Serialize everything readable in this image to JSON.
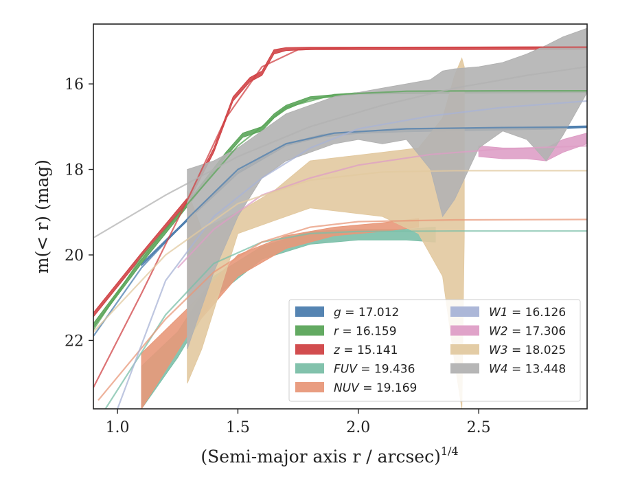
{
  "chart_data": {
    "type": "line",
    "xlabel": "(Semi-major axis r / arcsec)",
    "xlabel_superscript": "1/4",
    "ylabel": "m(< r) (mag)",
    "xlim": [
      0.9,
      2.95
    ],
    "ylim": [
      23.6,
      14.6
    ],
    "y_inverted": true,
    "xticks": [
      1.0,
      1.5,
      2.0,
      2.5
    ],
    "xtick_labels": [
      "1.0",
      "1.5",
      "2.0",
      "2.5"
    ],
    "yticks": [
      16,
      18,
      20,
      22
    ],
    "ytick_labels": [
      "16",
      "18",
      "20",
      "22"
    ],
    "grid": false,
    "legend_position": "lower-right",
    "series": [
      {
        "key": "g",
        "name": "g = 17.012",
        "label_var": "g",
        "label_val": "= 17.012",
        "color": "#4c7dae",
        "band_x": [
          1.1,
          1.3,
          1.5,
          1.7,
          1.85,
          2.0,
          2.2,
          2.4,
          2.6,
          2.8,
          2.95
        ],
        "band_lo": [
          20.2,
          19.1,
          18.05,
          17.4,
          17.18,
          17.1,
          17.06,
          17.04,
          17.02,
          17.0,
          16.98
        ],
        "band_hi": [
          20.25,
          19.15,
          18.1,
          17.45,
          17.24,
          17.16,
          17.12,
          17.1,
          17.08,
          17.06,
          17.02
        ],
        "model_x": [
          0.9,
          1.1,
          1.3,
          1.5,
          1.7,
          1.9,
          2.2,
          2.6,
          2.95
        ],
        "model_y": [
          21.9,
          20.3,
          19.1,
          18.0,
          17.4,
          17.15,
          17.05,
          17.02,
          17.01
        ]
      },
      {
        "key": "r",
        "name": "r = 16.159",
        "label_var": "r",
        "label_val": "= 16.159",
        "color": "#5ba55a",
        "band_x": [
          0.9,
          1.1,
          1.3,
          1.45,
          1.52,
          1.6,
          1.65,
          1.7,
          1.8,
          2.0,
          2.4,
          2.95
        ],
        "band_lo": [
          21.6,
          20.1,
          18.7,
          17.6,
          17.15,
          17.0,
          16.7,
          16.5,
          16.3,
          16.2,
          16.18,
          16.16
        ],
        "band_hi": [
          21.7,
          20.2,
          18.8,
          17.7,
          17.25,
          17.1,
          16.8,
          16.6,
          16.36,
          16.24,
          16.22,
          16.2
        ],
        "model_x": [
          0.9,
          1.1,
          1.3,
          1.5,
          1.7,
          1.9,
          2.2,
          2.6,
          2.95
        ],
        "model_y": [
          21.75,
          20.05,
          18.75,
          17.45,
          16.55,
          16.25,
          16.17,
          16.16,
          16.16
        ]
      },
      {
        "key": "z",
        "name": "z = 15.141",
        "label_var": "z",
        "label_val": "= 15.141",
        "color": "#d04346",
        "band_x": [
          0.9,
          1.1,
          1.3,
          1.4,
          1.48,
          1.55,
          1.6,
          1.65,
          1.7,
          1.8,
          2.0,
          2.4,
          2.95
        ],
        "band_lo": [
          21.35,
          19.95,
          18.6,
          17.5,
          16.3,
          15.85,
          15.7,
          15.2,
          15.15,
          15.14,
          15.14,
          15.14,
          15.13
        ],
        "band_hi": [
          21.45,
          20.05,
          18.7,
          17.6,
          16.4,
          15.95,
          15.8,
          15.3,
          15.22,
          15.2,
          15.2,
          15.2,
          15.19
        ],
        "model_x": [
          0.9,
          1.1,
          1.3,
          1.45,
          1.6,
          1.75,
          2.0,
          2.95
        ],
        "model_y": [
          23.1,
          20.9,
          18.6,
          16.8,
          15.6,
          15.2,
          15.15,
          15.14
        ]
      },
      {
        "key": "FUV",
        "name": "FUV = 19.436",
        "label_var": "FUV",
        "label_val": "= 19.436",
        "color": "#7bbfa8",
        "band_x": [
          1.1,
          1.25,
          1.4,
          1.6,
          1.8,
          2.0,
          2.2,
          2.32
        ],
        "band_lo": [
          22.6,
          21.8,
          20.5,
          19.8,
          19.45,
          19.4,
          19.4,
          19.35
        ],
        "band_hi": [
          23.6,
          22.4,
          21.0,
          20.1,
          19.75,
          19.65,
          19.65,
          19.7
        ],
        "model_x": [
          0.95,
          1.2,
          1.4,
          1.6,
          1.8,
          2.0,
          2.4,
          2.95
        ],
        "model_y": [
          23.6,
          21.4,
          20.2,
          19.7,
          19.5,
          19.45,
          19.44,
          19.44
        ]
      },
      {
        "key": "NUV",
        "name": "NUV = 19.169",
        "label_var": "NUV",
        "label_val": "= 19.169",
        "color": "#e8987a",
        "band_x": [
          1.1,
          1.3,
          1.5,
          1.7,
          1.9,
          2.1,
          2.25
        ],
        "band_lo": [
          22.3,
          21.2,
          20.0,
          19.55,
          19.35,
          19.25,
          19.15
        ],
        "band_hi": [
          23.6,
          21.8,
          20.5,
          19.85,
          19.55,
          19.45,
          19.35
        ],
        "model_x": [
          0.92,
          1.2,
          1.4,
          1.6,
          1.8,
          2.0,
          2.4,
          2.95
        ],
        "model_y": [
          23.4,
          21.5,
          20.4,
          19.7,
          19.35,
          19.22,
          19.18,
          19.17
        ]
      },
      {
        "key": "W1",
        "name": "W1 = 16.126",
        "label_var": "W1",
        "label_val": "= 16.126",
        "color": "#a8b3d6",
        "band_x": [],
        "band_lo": [],
        "band_hi": [],
        "model_x": [
          1.0,
          1.2,
          1.4,
          1.6,
          1.8,
          2.0,
          2.3,
          2.6,
          2.95
        ],
        "model_y": [
          23.6,
          20.6,
          19.1,
          18.2,
          17.5,
          17.05,
          16.75,
          16.55,
          16.4
        ]
      },
      {
        "key": "W2",
        "name": "W2 = 17.306",
        "label_var": "W2",
        "label_val": "= 17.306",
        "color": "#de9ec6",
        "band_x": [
          2.5,
          2.6,
          2.7,
          2.78,
          2.85,
          2.95
        ],
        "band_lo": [
          17.45,
          17.5,
          17.5,
          17.5,
          17.3,
          17.15
        ],
        "band_hi": [
          17.7,
          17.75,
          17.75,
          17.8,
          17.6,
          17.4
        ],
        "model_x": [
          1.25,
          1.4,
          1.6,
          1.8,
          2.0,
          2.3,
          2.6,
          2.95
        ],
        "model_y": [
          20.3,
          19.4,
          18.6,
          18.2,
          17.9,
          17.65,
          17.52,
          17.45
        ]
      },
      {
        "key": "W3",
        "name": "W3 = 18.025",
        "label_var": "W3",
        "label_val": "= 18.025",
        "color": "#e2c9a0",
        "band_x": [
          1.29,
          1.35,
          1.5,
          1.65,
          1.8,
          1.95,
          2.1,
          2.25,
          2.35,
          2.4,
          2.43,
          2.44
        ],
        "band_lo": [
          18.5,
          19.4,
          19.0,
          18.5,
          17.8,
          17.7,
          17.6,
          17.5,
          16.8,
          15.8,
          15.4,
          15.6
        ],
        "band_hi": [
          23.0,
          22.2,
          19.5,
          19.2,
          18.9,
          19.0,
          19.1,
          19.5,
          20.5,
          22.5,
          23.6,
          19.6
        ],
        "model_x": [
          0.9,
          1.2,
          1.5,
          1.8,
          2.1,
          2.4,
          2.95
        ],
        "model_y": [
          21.8,
          20.0,
          18.8,
          18.25,
          18.06,
          18.03,
          18.03
        ]
      },
      {
        "key": "W4",
        "name": "W4 = 13.448",
        "label_var": "W4",
        "label_val": "= 13.448",
        "color": "#b2b2b2",
        "band_x": [
          1.29,
          1.4,
          1.5,
          1.6,
          1.7,
          1.8,
          1.9,
          2.0,
          2.1,
          2.2,
          2.3,
          2.35,
          2.4,
          2.5,
          2.6,
          2.7,
          2.78,
          2.85,
          2.95
        ],
        "band_lo": [
          22.2,
          20.4,
          19.1,
          18.2,
          17.8,
          17.6,
          17.4,
          17.3,
          17.4,
          17.3,
          18.0,
          19.1,
          18.7,
          17.5,
          17.1,
          17.3,
          17.8,
          17.2,
          16.2
        ],
        "band_hi": [
          18.0,
          17.8,
          17.5,
          17.1,
          16.7,
          16.5,
          16.3,
          16.2,
          16.1,
          16.0,
          15.9,
          15.7,
          15.65,
          15.6,
          15.5,
          15.3,
          15.1,
          14.9,
          14.7
        ],
        "model_x": [
          0.9,
          1.2,
          1.5,
          1.8,
          2.1,
          2.4,
          2.7,
          2.95
        ],
        "model_y": [
          19.6,
          18.6,
          17.7,
          17.0,
          16.5,
          16.1,
          15.8,
          15.6
        ]
      }
    ]
  }
}
